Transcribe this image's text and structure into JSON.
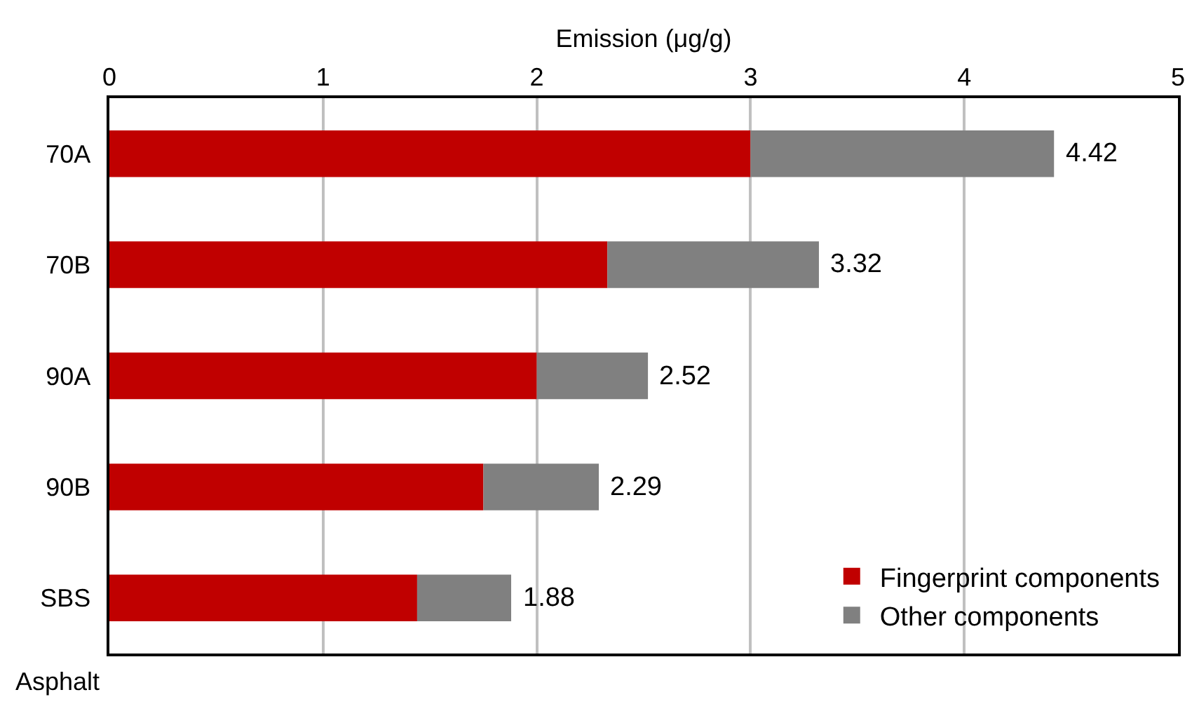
{
  "chart_data": {
    "type": "bar",
    "orientation": "horizontal",
    "stacked": true,
    "xlabel": "Emission (μg/g)",
    "ylabel": "Asphalt",
    "categories": [
      "70A",
      "70B",
      "90A",
      "90B",
      "SBS"
    ],
    "series": [
      {
        "name": "Fingerprint components",
        "color": "#c00000",
        "values": [
          3.0,
          2.33,
          2.0,
          1.75,
          1.44
        ]
      },
      {
        "name": "Other components",
        "color": "#808080",
        "values": [
          1.42,
          0.99,
          0.52,
          0.54,
          0.44
        ]
      }
    ],
    "totals": [
      "4.42",
      "3.32",
      "2.52",
      "2.29",
      "1.88"
    ],
    "xlim": [
      0,
      5
    ],
    "xticks": [
      0,
      1,
      2,
      3,
      4,
      5
    ],
    "grid": "x",
    "legend": "bottom right"
  }
}
